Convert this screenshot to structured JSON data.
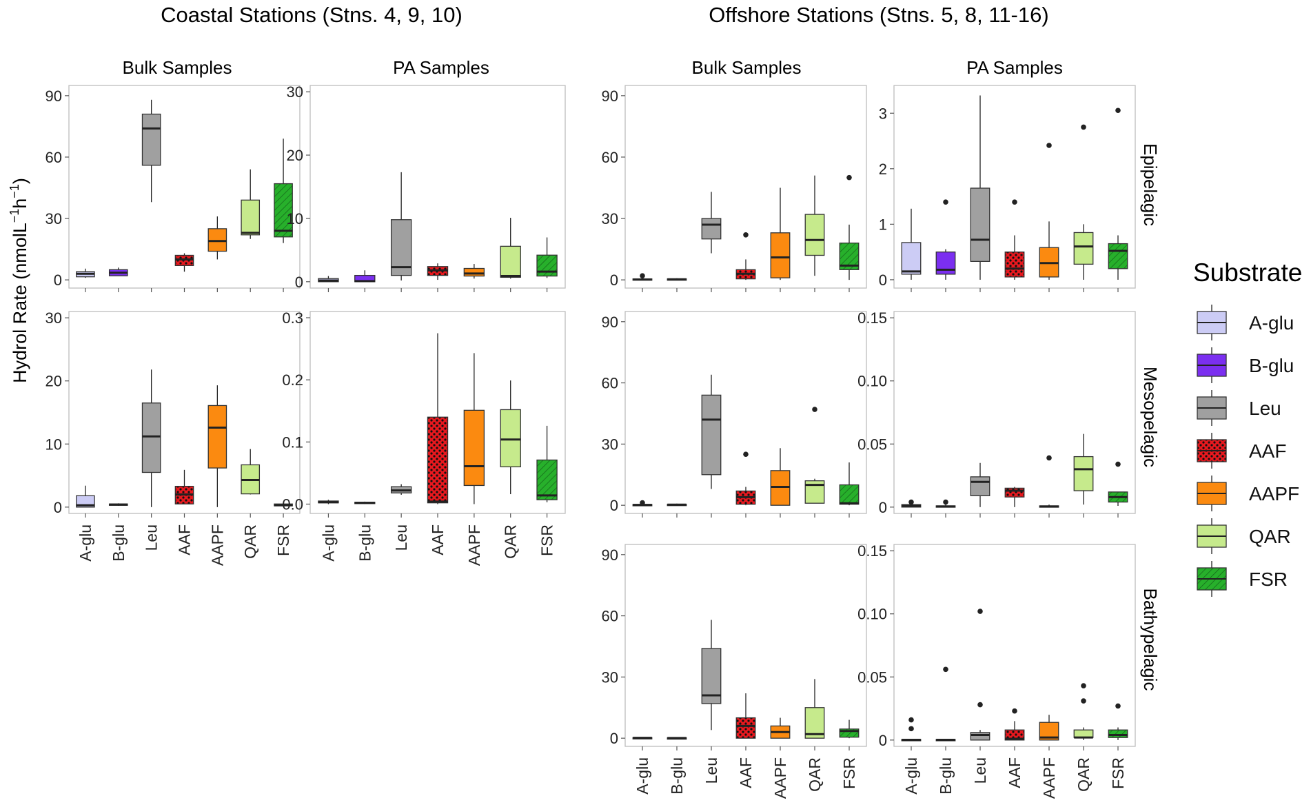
{
  "titles": {
    "coastal": "Coastal Stations (Stns. 4, 9, 10)",
    "offshore": "Offshore Stations (Stns. 5, 8, 11-16)"
  },
  "column_titles": {
    "coastal_bulk": "Bulk Samples",
    "coastal_pa": "PA Samples",
    "offshore_bulk": "Bulk Samples",
    "offshore_pa": "PA Samples"
  },
  "row_labels": {
    "epi": "Epipelagic",
    "meso": "Mesopelagic",
    "bathy": "Bathypelagic"
  },
  "ylabel": {
    "prefix": "Hydrol Rate (nmolL",
    "sup1": "−1",
    "mid": "h",
    "sup2": "−1",
    "suffix": ")"
  },
  "legend": {
    "title": "Substrate",
    "items": [
      {
        "key": "A-glu",
        "label": "A-glu",
        "color": "#ccccf5",
        "pattern": "none"
      },
      {
        "key": "B-glu",
        "label": "B-glu",
        "color": "#7b2ff0",
        "pattern": "none"
      },
      {
        "key": "Leu",
        "label": "Leu",
        "color": "#a0a0a0",
        "pattern": "none"
      },
      {
        "key": "AAF",
        "label": "AAF",
        "color": "#e8181e",
        "pattern": "dots"
      },
      {
        "key": "AAPF",
        "label": "AAPF",
        "color": "#fb8a10",
        "pattern": "none"
      },
      {
        "key": "QAR",
        "label": "QAR",
        "color": "#c6ea8c",
        "pattern": "none"
      },
      {
        "key": "FSR",
        "label": "FSR",
        "color": "#27b02b",
        "pattern": "stripes"
      }
    ]
  },
  "chart_data": {
    "type": "box",
    "categories": [
      "A-glu",
      "B-glu",
      "Leu",
      "AAF",
      "AAPF",
      "QAR",
      "FSR"
    ],
    "ylabel": "Hydrol Rate (nmolL−1h−1)",
    "panels": [
      {
        "id": "coastal-bulk-epi",
        "group": "Coastal",
        "sample": "Bulk Samples",
        "depth": "Epipelagic",
        "ylim": [
          -4,
          95
        ],
        "ticks": [
          0,
          30,
          60,
          90
        ],
        "tick_labels": [
          "0",
          "30",
          "60",
          "90"
        ],
        "boxes": [
          {
            "min": 1,
            "q1": 1.5,
            "median": 3,
            "q3": 4,
            "max": 5.5,
            "outliers": []
          },
          {
            "min": 2,
            "q1": 2,
            "median": 3.5,
            "q3": 5,
            "max": 6,
            "outliers": []
          },
          {
            "min": 38,
            "q1": 56,
            "median": 74,
            "q3": 81,
            "max": 88,
            "outliers": []
          },
          {
            "min": 4,
            "q1": 7,
            "median": 10,
            "q3": 12,
            "max": 13,
            "outliers": []
          },
          {
            "min": 10,
            "q1": 14,
            "median": 19,
            "q3": 25,
            "max": 31,
            "outliers": []
          },
          {
            "min": 20,
            "q1": 22,
            "median": 23,
            "q3": 39,
            "max": 54,
            "outliers": []
          },
          {
            "min": 18,
            "q1": 21,
            "median": 24,
            "q3": 47,
            "max": 69,
            "outliers": []
          }
        ]
      },
      {
        "id": "coastal-pa-epi",
        "group": "Coastal",
        "sample": "PA Samples",
        "depth": "Epipelagic",
        "ylim": [
          -1,
          31
        ],
        "ticks": [
          0,
          10,
          20,
          30
        ],
        "tick_labels": [
          "0",
          "10",
          "20",
          "30"
        ],
        "boxes": [
          {
            "min": 0,
            "q1": 0,
            "median": 0.2,
            "q3": 0.5,
            "max": 0.9,
            "outliers": []
          },
          {
            "min": 0,
            "q1": 0,
            "median": 0.1,
            "q3": 1.0,
            "max": 1.8,
            "outliers": []
          },
          {
            "min": 0.2,
            "q1": 1.0,
            "median": 2.3,
            "q3": 9.8,
            "max": 17.3,
            "outliers": []
          },
          {
            "min": 0.3,
            "q1": 1.0,
            "median": 1.8,
            "q3": 2.4,
            "max": 2.9,
            "outliers": []
          },
          {
            "min": 0.5,
            "q1": 0.9,
            "median": 1.3,
            "q3": 2.1,
            "max": 2.8,
            "outliers": []
          },
          {
            "min": 0.5,
            "q1": 0.7,
            "median": 0.9,
            "q3": 5.6,
            "max": 10.1,
            "outliers": []
          },
          {
            "min": 0.6,
            "q1": 0.9,
            "median": 1.6,
            "q3": 4.2,
            "max": 7.0,
            "outliers": []
          }
        ]
      },
      {
        "id": "coastal-bulk-meso",
        "group": "Coastal",
        "sample": "Bulk Samples",
        "depth": "Mesopelagic",
        "ylim": [
          -1,
          31
        ],
        "ticks": [
          0,
          10,
          20,
          30
        ],
        "tick_labels": [
          "0",
          "10",
          "20",
          "30"
        ],
        "boxes": [
          {
            "min": 0,
            "q1": 0,
            "median": 0.3,
            "q3": 1.8,
            "max": 3.4,
            "outliers": []
          },
          {
            "min": 0.2,
            "q1": 0.3,
            "median": 0.4,
            "q3": 0.5,
            "max": 0.6,
            "outliers": []
          },
          {
            "min": 0,
            "q1": 5.5,
            "median": 11.2,
            "q3": 16.5,
            "max": 21.8,
            "outliers": []
          },
          {
            "min": 0.5,
            "q1": 0.5,
            "median": 2.0,
            "q3": 3.3,
            "max": 5.9,
            "outliers": []
          },
          {
            "min": 0,
            "q1": 6.2,
            "median": 12.6,
            "q3": 16.1,
            "max": 19.3,
            "outliers": []
          },
          {
            "min": 2.0,
            "q1": 2.1,
            "median": 4.3,
            "q3": 6.7,
            "max": 9.2,
            "outliers": []
          },
          {
            "min": 0.1,
            "q1": 0.2,
            "median": 0.3,
            "q3": 0.5,
            "max": 0.6,
            "outliers": []
          }
        ]
      },
      {
        "id": "coastal-pa-meso",
        "group": "Coastal",
        "sample": "PA Samples",
        "depth": "Mesopelagic",
        "ylim": [
          -0.015,
          0.31
        ],
        "ticks": [
          0,
          0.1,
          0.2,
          0.3
        ],
        "tick_labels": [
          "0.0",
          "0.1",
          "0.2",
          "0.3"
        ],
        "boxes": [
          {
            "min": 0.0,
            "q1": 0.002,
            "median": 0.003,
            "q3": 0.005,
            "max": 0.007,
            "outliers": []
          },
          {
            "min": 0.0,
            "q1": 0.001,
            "median": 0.002,
            "q3": 0.003,
            "max": 0.004,
            "outliers": []
          },
          {
            "min": 0.015,
            "q1": 0.018,
            "median": 0.022,
            "q3": 0.028,
            "max": 0.032,
            "outliers": []
          },
          {
            "min": 0.0,
            "q1": 0.002,
            "median": 0.004,
            "q3": 0.14,
            "max": 0.275,
            "outliers": []
          },
          {
            "min": 0.0,
            "q1": 0.03,
            "median": 0.061,
            "q3": 0.151,
            "max": 0.243,
            "outliers": []
          },
          {
            "min": 0.016,
            "q1": 0.06,
            "median": 0.104,
            "q3": 0.152,
            "max": 0.199,
            "outliers": []
          },
          {
            "min": 0.003,
            "q1": 0.007,
            "median": 0.014,
            "q3": 0.071,
            "max": 0.126,
            "outliers": []
          }
        ]
      },
      {
        "id": "offshore-bulk-epi",
        "group": "Offshore",
        "sample": "Bulk Samples",
        "depth": "Epipelagic",
        "ylim": [
          -4,
          95
        ],
        "ticks": [
          0,
          30,
          60,
          90
        ],
        "tick_labels": [
          "0",
          "30",
          "60",
          "90"
        ],
        "boxes": [
          {
            "min": 0,
            "q1": 0,
            "median": 0.2,
            "q3": 0.5,
            "max": 0.8,
            "outliers": [
              2
            ]
          },
          {
            "min": 0,
            "q1": 0,
            "median": 0.3,
            "q3": 0.5,
            "max": 0.8,
            "outliers": []
          },
          {
            "min": 13,
            "q1": 20,
            "median": 27,
            "q3": 30,
            "max": 43,
            "outliers": []
          },
          {
            "min": 0,
            "q1": 0.5,
            "median": 3,
            "q3": 5,
            "max": 10,
            "outliers": [
              22
            ]
          },
          {
            "min": 0,
            "q1": 1,
            "median": 11,
            "q3": 23,
            "max": 45,
            "outliers": []
          },
          {
            "min": 2,
            "q1": 12,
            "median": 19.5,
            "q3": 32,
            "max": 51,
            "outliers": []
          },
          {
            "min": 0,
            "q1": 5,
            "median": 7,
            "q3": 18,
            "max": 27,
            "outliers": [
              50
            ]
          }
        ]
      },
      {
        "id": "offshore-pa-epi",
        "group": "Offshore",
        "sample": "PA Samples",
        "depth": "Epipelagic",
        "ylim": [
          -0.15,
          3.5
        ],
        "ticks": [
          0,
          1,
          2,
          3
        ],
        "tick_labels": [
          "0",
          "1",
          "2",
          "3"
        ],
        "boxes": [
          {
            "min": 0,
            "q1": 0.1,
            "median": 0.15,
            "q3": 0.67,
            "max": 1.28,
            "outliers": []
          },
          {
            "min": 0,
            "q1": 0.1,
            "median": 0.18,
            "q3": 0.5,
            "max": 0.55,
            "outliers": [
              1.4
            ]
          },
          {
            "min": 0,
            "q1": 0.33,
            "median": 0.72,
            "q3": 1.65,
            "max": 3.32,
            "outliers": []
          },
          {
            "min": 0,
            "q1": 0.05,
            "median": 0.2,
            "q3": 0.5,
            "max": 0.8,
            "outliers": [
              1.4
            ]
          },
          {
            "min": 0,
            "q1": 0.05,
            "median": 0.3,
            "q3": 0.58,
            "max": 1.05,
            "outliers": [
              2.42
            ]
          },
          {
            "min": 0,
            "q1": 0.28,
            "median": 0.6,
            "q3": 0.85,
            "max": 1.0,
            "outliers": [
              2.75
            ]
          },
          {
            "min": 0,
            "q1": 0.2,
            "median": 0.52,
            "q3": 0.65,
            "max": 0.8,
            "outliers": [
              3.05
            ]
          }
        ]
      },
      {
        "id": "offshore-bulk-meso",
        "group": "Offshore",
        "sample": "Bulk Samples",
        "depth": "Mesopelagic",
        "ylim": [
          -4,
          95
        ],
        "ticks": [
          0,
          30,
          60,
          90
        ],
        "tick_labels": [
          "0",
          "30",
          "60",
          "90"
        ],
        "boxes": [
          {
            "min": 0,
            "q1": 0,
            "median": 0.2,
            "q3": 0.4,
            "max": 0.6,
            "outliers": [
              1.2
            ]
          },
          {
            "min": 0,
            "q1": 0,
            "median": 0.3,
            "q3": 0.5,
            "max": 0.8,
            "outliers": []
          },
          {
            "min": 8,
            "q1": 15,
            "median": 42,
            "q3": 54,
            "max": 64,
            "outliers": []
          },
          {
            "min": 0,
            "q1": 0.5,
            "median": 4,
            "q3": 7,
            "max": 9,
            "outliers": [
              25
            ]
          },
          {
            "min": 0,
            "q1": 0,
            "median": 9,
            "q3": 17,
            "max": 28,
            "outliers": []
          },
          {
            "min": 1,
            "q1": 1,
            "median": 10,
            "q3": 12,
            "max": 13,
            "outliers": [
              47
            ]
          },
          {
            "min": 0,
            "q1": 0.5,
            "median": 1,
            "q3": 10,
            "max": 21,
            "outliers": []
          }
        ]
      },
      {
        "id": "offshore-pa-meso",
        "group": "Offshore",
        "sample": "PA Samples",
        "depth": "Mesopelagic",
        "ylim": [
          -0.005,
          0.155
        ],
        "ticks": [
          0,
          0.05,
          0.1,
          0.15
        ],
        "tick_labels": [
          "0",
          "0.05",
          "0.10",
          "0.15"
        ],
        "boxes": [
          {
            "min": 0,
            "q1": 0,
            "median": 0.001,
            "q3": 0.002,
            "max": 0.002,
            "outliers": [
              0.004
            ]
          },
          {
            "min": 0,
            "q1": 0,
            "median": 0.0005,
            "q3": 0.001,
            "max": 0.002,
            "outliers": [
              0.004
            ]
          },
          {
            "min": 0.0,
            "q1": 0.009,
            "median": 0.02,
            "q3": 0.024,
            "max": 0.035,
            "outliers": []
          },
          {
            "min": 0.0,
            "q1": 0.008,
            "median": 0.013,
            "q3": 0.015,
            "max": 0.016,
            "outliers": []
          },
          {
            "min": 0,
            "q1": 0,
            "median": 0.0005,
            "q3": 0.001,
            "max": 0.002,
            "outliers": [
              0.039
            ]
          },
          {
            "min": 0.002,
            "q1": 0.013,
            "median": 0.03,
            "q3": 0.04,
            "max": 0.058,
            "outliers": []
          },
          {
            "min": 0.001,
            "q1": 0.004,
            "median": 0.008,
            "q3": 0.012,
            "max": 0.012,
            "outliers": [
              0.034
            ]
          }
        ]
      },
      {
        "id": "offshore-bulk-bathy",
        "group": "Offshore",
        "sample": "Bulk Samples",
        "depth": "Bathypelagic",
        "ylim": [
          -4,
          95
        ],
        "ticks": [
          0,
          30,
          60,
          90
        ],
        "tick_labels": [
          "0",
          "30",
          "60",
          "90"
        ],
        "boxes": [
          {
            "min": 0,
            "q1": 0,
            "median": 0.2,
            "q3": 0.3,
            "max": 0.4,
            "outliers": []
          },
          {
            "min": 0,
            "q1": 0,
            "median": 0.1,
            "q3": 0.2,
            "max": 0.3,
            "outliers": []
          },
          {
            "min": 4,
            "q1": 17,
            "median": 21,
            "q3": 44,
            "max": 58,
            "outliers": []
          },
          {
            "min": 0,
            "q1": 0,
            "median": 6,
            "q3": 10,
            "max": 22,
            "outliers": []
          },
          {
            "min": 0,
            "q1": 0,
            "median": 3,
            "q3": 6,
            "max": 10,
            "outliers": []
          },
          {
            "min": 0,
            "q1": 0,
            "median": 2,
            "q3": 15,
            "max": 29,
            "outliers": []
          },
          {
            "min": 0,
            "q1": 0.5,
            "median": 3.5,
            "q3": 4.5,
            "max": 9,
            "outliers": []
          }
        ]
      },
      {
        "id": "offshore-pa-bathy",
        "group": "Offshore",
        "sample": "PA Samples",
        "depth": "Bathypelagic",
        "ylim": [
          -0.005,
          0.155
        ],
        "ticks": [
          0,
          0.05,
          0.1,
          0.15
        ],
        "tick_labels": [
          "0",
          "0.05",
          "0.10",
          "0.15"
        ],
        "boxes": [
          {
            "min": 0,
            "q1": 0,
            "median": 0.0002,
            "q3": 0.0005,
            "max": 0.001,
            "outliers": [
              0.016,
              0.009
            ]
          },
          {
            "min": 0,
            "q1": 0,
            "median": 0.0002,
            "q3": 0.0005,
            "max": 0.001,
            "outliers": [
              0.056
            ]
          },
          {
            "min": 0,
            "q1": 0,
            "median": 0.004,
            "q3": 0.006,
            "max": 0.008,
            "outliers": [
              0.102,
              0.028
            ]
          },
          {
            "min": 0,
            "q1": 0,
            "median": 0.001,
            "q3": 0.008,
            "max": 0.015,
            "outliers": [
              0.023
            ]
          },
          {
            "min": 0,
            "q1": 0,
            "median": 0.002,
            "q3": 0.014,
            "max": 0.02,
            "outliers": []
          },
          {
            "min": 0,
            "q1": 0.002,
            "median": 0.002,
            "q3": 0.008,
            "max": 0.01,
            "outliers": [
              0.043,
              0.031
            ]
          },
          {
            "min": 0,
            "q1": 0.002,
            "median": 0.004,
            "q3": 0.008,
            "max": 0.01,
            "outliers": [
              0.027
            ]
          }
        ]
      }
    ]
  }
}
